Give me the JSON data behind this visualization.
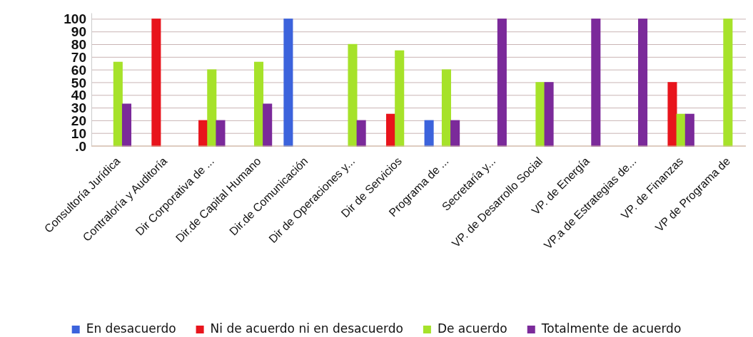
{
  "chart_data": {
    "type": "bar",
    "categories": [
      "Consultoría Jurídica",
      "Contraloría y Auditoría",
      "Dir Corporativa de ...",
      "Dir.de Capital Humano",
      "Dir.de Comunicación",
      "Dir de Operaciones y...",
      "Dir de Servicios",
      "Programa de ...",
      "Secretaría y...",
      "VP. de Desarrollo Social",
      "VP. de Energía",
      "VP.a de Estrategias de...",
      "VP. de Finanzas",
      "VP de Programa de"
    ],
    "series": [
      {
        "name": "En desacuerdo",
        "color": "#3c63dc",
        "values": [
          0,
          0,
          0,
          0,
          100,
          0,
          0,
          20,
          0,
          0,
          0,
          0,
          0,
          0
        ]
      },
      {
        "name": "Ni de acuerdo ni en desacuerdo",
        "color": "#e8141c",
        "values": [
          0,
          100,
          20,
          0,
          0,
          0,
          25,
          0,
          0,
          0,
          0,
          0,
          50,
          0
        ]
      },
      {
        "name": "De acuerdo",
        "color": "#a6e22a",
        "values": [
          66,
          0,
          60,
          66,
          0,
          80,
          75,
          60,
          0,
          50,
          0,
          0,
          25,
          100
        ]
      },
      {
        "name": "Totalmente de acuerdo",
        "color": "#7b2a9a",
        "values": [
          33,
          0,
          20,
          33,
          0,
          20,
          0,
          20,
          100,
          50,
          100,
          100,
          25,
          0
        ]
      }
    ],
    "ylim": [
      0,
      105
    ],
    "yticks": [
      {
        "value": 0,
        "label": ".0"
      },
      10,
      20,
      30,
      40,
      50,
      60,
      70,
      80,
      90,
      100
    ],
    "grid": "y",
    "legend": "bottom"
  }
}
